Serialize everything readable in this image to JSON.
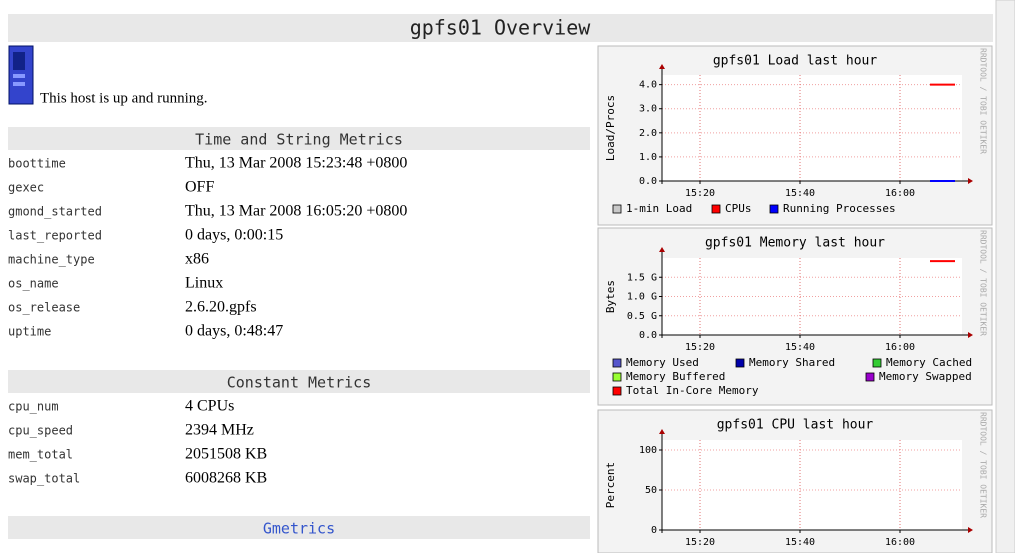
{
  "header": {
    "title": "gpfs01 Overview"
  },
  "status": "This host is up and running.",
  "sections": [
    {
      "title": "Time and String Metrics",
      "rows": [
        [
          "boottime",
          "Thu, 13 Mar 2008 15:23:48 +0800"
        ],
        [
          "gexec",
          "OFF"
        ],
        [
          "gmond_started",
          "Thu, 13 Mar 2008 16:05:20 +0800"
        ],
        [
          "last_reported",
          "0 days, 0:00:15"
        ],
        [
          "machine_type",
          "x86"
        ],
        [
          "os_name",
          "Linux"
        ],
        [
          "os_release",
          "2.6.20.gpfs"
        ],
        [
          "uptime",
          "0 days, 0:48:47"
        ]
      ]
    },
    {
      "title": "Constant Metrics",
      "rows": [
        [
          "cpu_num",
          "4 CPUs"
        ],
        [
          "cpu_speed",
          "2394 MHz"
        ],
        [
          "mem_total",
          "2051508 KB"
        ],
        [
          "swap_total",
          "6008268 KB"
        ]
      ]
    },
    {
      "title": "Gmetrics"
    }
  ],
  "watermark": "RRDTOOL / TOBI OETIKER",
  "graphs": [
    {
      "type": "line",
      "title": "gpfs01 Load last hour",
      "ylabel": "Load/Procs",
      "ylim": [
        0,
        4.4
      ],
      "yticks": [
        {
          "value": 0,
          "label": "0.0"
        },
        {
          "value": 1,
          "label": "1.0"
        },
        {
          "value": 2,
          "label": "2.0"
        },
        {
          "value": 3,
          "label": "3.0"
        },
        {
          "value": 4,
          "label": "4.0"
        }
      ],
      "xlim": [
        12.4,
        72.4
      ],
      "xticks": [
        {
          "value": 20,
          "label": "15:20"
        },
        {
          "value": 40,
          "label": "15:40"
        },
        {
          "value": 60,
          "label": "16:00"
        }
      ],
      "series": [
        {
          "name": "1-min Load",
          "color": "#c8c8c8"
        },
        {
          "name": "CPUs",
          "color": "#ff0000",
          "x": [
            66,
            71
          ],
          "values": [
            4,
            4
          ]
        },
        {
          "name": "Running Processes",
          "color": "#0000ff",
          "x": [
            66,
            71
          ],
          "values": [
            0,
            0
          ]
        }
      ]
    },
    {
      "type": "line",
      "title": "gpfs01 Memory last hour",
      "ylabel": "Bytes",
      "ylim": [
        0,
        2
      ],
      "yticks": [
        {
          "value": 0,
          "label": "0.0"
        },
        {
          "value": 0.5,
          "label": "0.5 G"
        },
        {
          "value": 1,
          "label": "1.0 G"
        },
        {
          "value": 1.5,
          "label": "1.5 G"
        }
      ],
      "xlim": [
        12.4,
        72.4
      ],
      "xticks": [
        {
          "value": 20,
          "label": "15:20"
        },
        {
          "value": 40,
          "label": "15:40"
        },
        {
          "value": 60,
          "label": "16:00"
        }
      ],
      "series": [
        {
          "name": "Memory Used",
          "color": "#5555cc"
        },
        {
          "name": "Memory Shared",
          "color": "#0000aa"
        },
        {
          "name": "Memory Cached",
          "color": "#33cc33"
        },
        {
          "name": "Memory Buffered",
          "color": "#99ff33"
        },
        {
          "name": "Memory Swapped",
          "color": "#9900cc"
        },
        {
          "name": "Total In-Core Memory",
          "color": "#ff0000",
          "x": [
            66,
            71
          ],
          "values": [
            1.92,
            1.92
          ]
        }
      ]
    },
    {
      "type": "line",
      "title": "gpfs01 CPU last hour",
      "ylabel": "Percent",
      "ylim": [
        0,
        112.5
      ],
      "yticks": [
        0,
        50,
        100
      ],
      "xlim": [
        12.4,
        72.4
      ],
      "xticks": [
        {
          "value": 20,
          "label": "15:20"
        },
        {
          "value": 40,
          "label": "15:40"
        },
        {
          "value": 60,
          "label": "16:00"
        }
      ],
      "series": []
    }
  ]
}
